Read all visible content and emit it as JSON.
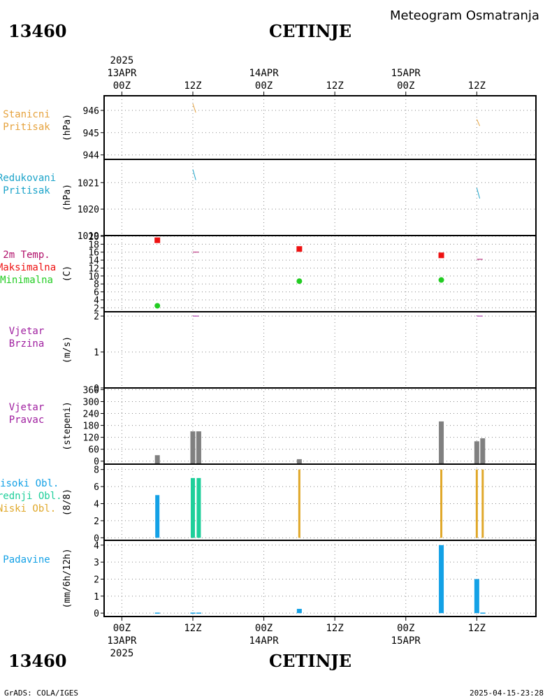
{
  "header": {
    "station_id": "13460",
    "station_name": "CETINJE",
    "title": "Meteogram Osmatranja"
  },
  "footer": {
    "credit": "GrADS: COLA/IGES",
    "timestamp": "2025-04-15-23:28"
  },
  "time_axis": {
    "year": "2025",
    "ticks": [
      {
        "hour": "00Z",
        "date": "13APR",
        "t": 0
      },
      {
        "hour": "12Z",
        "date": "",
        "t": 12
      },
      {
        "hour": "00Z",
        "date": "14APR",
        "t": 24
      },
      {
        "hour": "12Z",
        "date": "",
        "t": 36
      },
      {
        "hour": "00Z",
        "date": "15APR",
        "t": 48
      },
      {
        "hour": "12Z",
        "date": "",
        "t": 60
      }
    ],
    "range_hours": [
      -3,
      70
    ]
  },
  "colors": {
    "pressure_station": "#e6a23c",
    "pressure_reduced": "#1aa3c9",
    "temp_max": "#ee1111",
    "temp_min": "#22cc22",
    "temp_line": "#b0106a",
    "wind_speed": "#a020a0",
    "wind_dir": "#808080",
    "cloud_high": "#13a1e6",
    "cloud_mid": "#1ecf9a",
    "cloud_low": "#e0a82a",
    "precip": "#13a1e6"
  },
  "panels": [
    {
      "label_lines": [
        "Stanicni",
        "Pritisak"
      ],
      "label_colors": [
        "pressure_station",
        "pressure_station"
      ],
      "unit": "(hPa)",
      "ticks": [
        "946",
        "945",
        "944"
      ]
    },
    {
      "label_lines": [
        "Redukovani",
        "Pritisak"
      ],
      "label_colors": [
        "pressure_reduced",
        "pressure_reduced"
      ],
      "unit": "(hPa)",
      "ticks": [
        "1021",
        "1020",
        "1019"
      ]
    },
    {
      "label_lines": [
        "2m Temp.",
        "Maksimalna",
        "Minimalna"
      ],
      "label_colors": [
        "temp_line",
        "temp_max",
        "temp_min"
      ],
      "unit": "(C)",
      "ticks": [
        "20",
        "18",
        "16",
        "14",
        "12",
        "10",
        "8",
        "6",
        "4",
        "2"
      ]
    },
    {
      "label_lines": [
        "Vjetar",
        "Brzina"
      ],
      "label_colors": [
        "wind_speed",
        "wind_speed"
      ],
      "unit": "(m/s)",
      "ticks": [
        "2",
        "1",
        "0"
      ]
    },
    {
      "label_lines": [
        "Vjetar",
        "Pravac"
      ],
      "label_colors": [
        "wind_speed",
        "wind_speed"
      ],
      "unit": "(stepeni)",
      "ticks": [
        "360",
        "300",
        "240",
        "180",
        "120",
        "60",
        "0"
      ]
    },
    {
      "label_lines": [
        "Visoki Obl.",
        "Srednji Obl.",
        "Niski Obl."
      ],
      "label_colors": [
        "cloud_high",
        "cloud_mid",
        "cloud_low"
      ],
      "unit": "(8/8)",
      "ticks": [
        "8",
        "6",
        "4",
        "2",
        "0"
      ]
    },
    {
      "label_lines": [
        "Padavine"
      ],
      "label_colors": [
        "precip"
      ],
      "unit": "(mm/6h/12h)",
      "ticks": [
        "4",
        "3",
        "2",
        "1",
        "0"
      ]
    }
  ],
  "chart_data": [
    {
      "type": "line",
      "panel": "station_pressure",
      "ylabel": "(hPa)",
      "ylim": [
        943.8,
        946.5
      ],
      "series": [
        {
          "segments": [
            [
              [
                12,
                946.3
              ],
              [
                12.5,
                945.9
              ]
            ],
            [
              [
                60,
                945.6
              ],
              [
                60.5,
                945.3
              ]
            ]
          ]
        }
      ]
    },
    {
      "type": "line",
      "panel": "reduced_pressure",
      "ylabel": "(hPa)",
      "ylim": [
        1019.0,
        1021.8
      ],
      "series": [
        {
          "segments": [
            [
              [
                12,
                1021.5
              ],
              [
                12.5,
                1021.1
              ]
            ],
            [
              [
                60,
                1020.8
              ],
              [
                60.5,
                1020.4
              ]
            ]
          ]
        }
      ]
    },
    {
      "type": "scatter",
      "panel": "temperature_2m",
      "ylabel": "(C)",
      "ylim": [
        1,
        20
      ],
      "series": [
        {
          "name": "Maksimalna",
          "points": [
            [
              6,
              19.0
            ],
            [
              30,
              16.8
            ],
            [
              54,
              15.2
            ]
          ]
        },
        {
          "name": "Minimalna",
          "points": [
            [
              6,
              2.5
            ],
            [
              30,
              8.7
            ],
            [
              54,
              9.0
            ]
          ]
        },
        {
          "segments": [
            [
              [
                12,
                16.0
              ],
              [
                13,
                16.0
              ]
            ],
            [
              [
                60,
                14.2
              ],
              [
                61,
                14.2
              ]
            ]
          ]
        }
      ]
    },
    {
      "type": "line",
      "panel": "wind_speed",
      "ylabel": "(m/s)",
      "ylim": [
        0,
        2.1
      ],
      "series": [
        {
          "segments": [
            [
              [
                12,
                2.0
              ],
              [
                13,
                2.0
              ]
            ],
            [
              [
                60,
                2.0
              ],
              [
                61,
                2.0
              ]
            ]
          ]
        }
      ]
    },
    {
      "type": "bar",
      "panel": "wind_direction",
      "ylabel": "(stepeni)",
      "ylim": [
        -15,
        365
      ],
      "x": [
        6,
        12,
        13,
        30,
        54,
        60,
        61
      ],
      "values": [
        30,
        150,
        150,
        10,
        200,
        100,
        115
      ]
    },
    {
      "type": "bar",
      "panel": "cloud_cover",
      "ylabel": "(8/8)",
      "ylim": [
        -0.3,
        8.3
      ],
      "series": [
        {
          "name": "Visoki Obl.",
          "x": [
            6
          ],
          "values": [
            5
          ]
        },
        {
          "name": "Srednji Obl.",
          "x": [
            12,
            13
          ],
          "values": [
            7,
            7
          ]
        },
        {
          "name": "Niski Obl.",
          "x": [
            30,
            54,
            60,
            61
          ],
          "values": [
            8,
            8,
            8,
            8
          ]
        }
      ]
    },
    {
      "type": "bar",
      "panel": "precipitation",
      "ylabel": "(mm/6h/12h)",
      "ylim": [
        -0.2,
        4.2
      ],
      "x": [
        6,
        12,
        13,
        30,
        54,
        60,
        61
      ],
      "values": [
        0.03,
        0.03,
        0.03,
        0.25,
        4.0,
        2.0,
        0.03
      ]
    }
  ]
}
